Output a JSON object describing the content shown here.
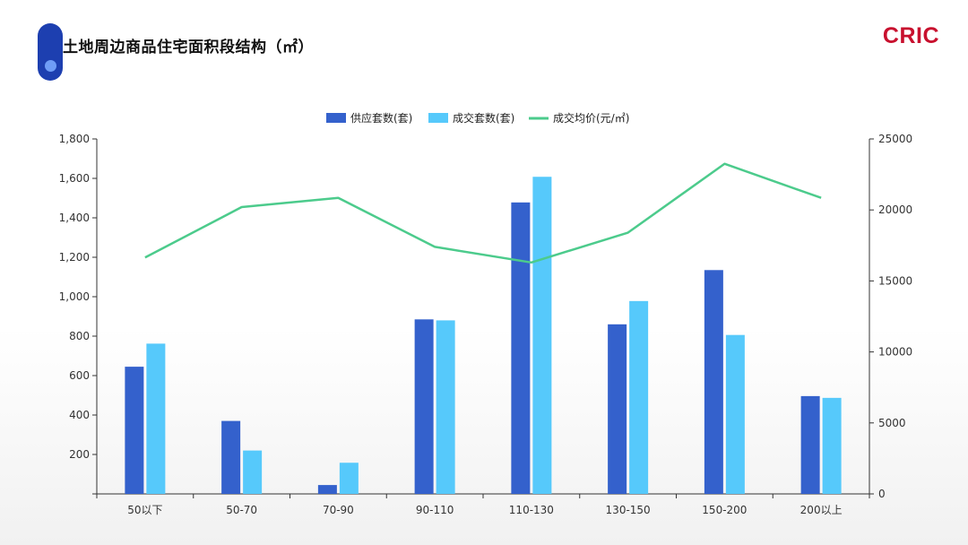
{
  "header": {
    "title": "土地周边商品住宅面积段结构（㎡）",
    "logo": "CRIC"
  },
  "colors": {
    "supply": "#3461cc",
    "deal": "#56c9fb",
    "price": "#4ccb8c",
    "title_accent": "#1d3fb0",
    "logo": "#c8102e"
  },
  "chart_data": {
    "type": "bar",
    "categories": [
      "50以下",
      "50-70",
      "70-90",
      "90-110",
      "110-130",
      "130-150",
      "150-200",
      "200以上"
    ],
    "series": [
      {
        "name": "供应套数(套)",
        "type": "bar",
        "axis": "left",
        "values": [
          645,
          370,
          45,
          885,
          1478,
          860,
          1135,
          496
        ]
      },
      {
        "name": "成交套数(套)",
        "type": "bar",
        "axis": "left",
        "values": [
          762,
          220,
          158,
          880,
          1608,
          978,
          806,
          487
        ]
      },
      {
        "name": "成交均价(元/㎡)",
        "type": "line",
        "axis": "right",
        "values": [
          16650,
          20200,
          20850,
          17400,
          16300,
          18400,
          23250,
          20850
        ]
      }
    ],
    "y_left": {
      "min": 0,
      "max": 1800,
      "ticks": [
        "",
        "200",
        "400",
        "600",
        "800",
        "1,000",
        "1,200",
        "1,400",
        "1,600",
        "1,800"
      ]
    },
    "y_right": {
      "min": 0,
      "max": 25000,
      "ticks": [
        "0",
        "5000",
        "10000",
        "15000",
        "20000",
        "25000"
      ]
    },
    "legend_position": "top-center",
    "grid": false
  }
}
